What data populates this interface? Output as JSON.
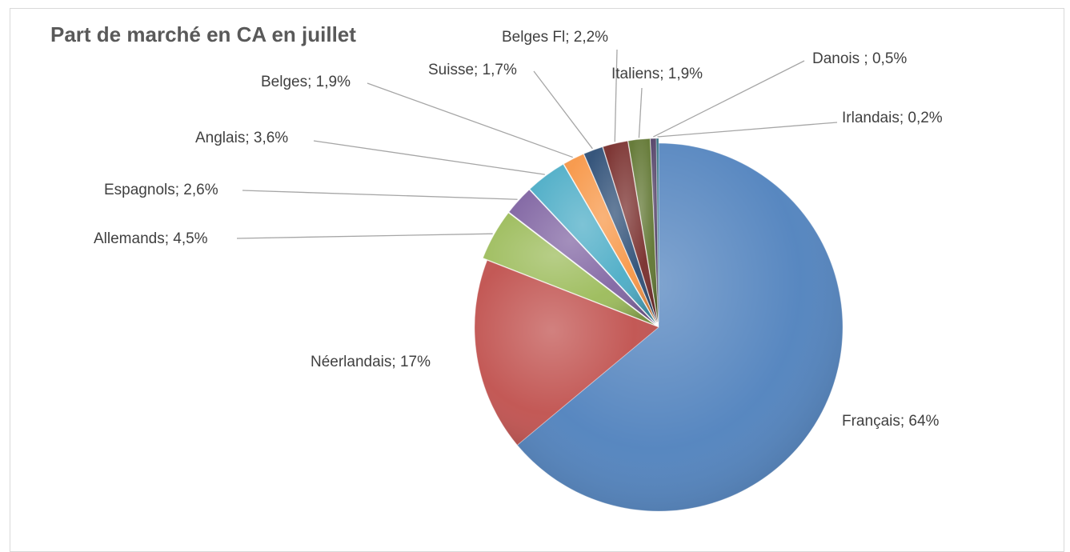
{
  "chart_data": {
    "type": "pie",
    "title": "Part de marché en CA en juillet",
    "slices": [
      {
        "name": "Français",
        "value": 64,
        "label": "Français; 64%",
        "color": "#4f81bd"
      },
      {
        "name": "Néerlandais",
        "value": 17,
        "label": "Néerlandais; 17%",
        "color": "#c0504d"
      },
      {
        "name": "Allemands",
        "value": 4.5,
        "label": "Allemands; 4,5%",
        "color": "#9bbb59"
      },
      {
        "name": "Espagnols",
        "value": 2.6,
        "label": "Espagnols; 2,6%",
        "color": "#8064a2"
      },
      {
        "name": "Anglais",
        "value": 3.6,
        "label": "Anglais; 3,6%",
        "color": "#4bacc6"
      },
      {
        "name": "Belges",
        "value": 1.9,
        "label": "Belges; 1,9%",
        "color": "#f79646"
      },
      {
        "name": "Suisse",
        "value": 1.7,
        "label": "Suisse; 1,7%",
        "color": "#2c4d75"
      },
      {
        "name": "Belges Fl",
        "value": 2.2,
        "label": "Belges Fl; 2,2%",
        "color": "#772c2a"
      },
      {
        "name": "Italiens",
        "value": 1.9,
        "label": "Italiens; 1,9%",
        "color": "#5f7530"
      },
      {
        "name": "Danois",
        "value": 0.5,
        "label": "Danois ; 0,5%",
        "color": "#4d3b62"
      },
      {
        "name": "Irlandais",
        "value": 0.2,
        "label": "Irlandais; 0,2%",
        "color": "#276a7c"
      }
    ],
    "start_direction": "top",
    "order": "clockwise",
    "legend": "none",
    "data_labels": "outside with leader lines"
  }
}
